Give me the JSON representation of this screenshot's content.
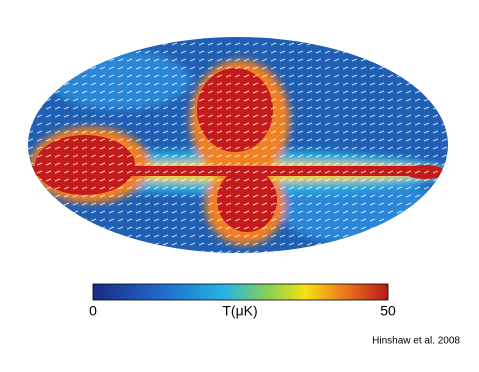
{
  "colorbar": {
    "min": "0",
    "label": "T(μK)",
    "max": "50"
  },
  "credit": "Hinshaw et al. 2008"
}
